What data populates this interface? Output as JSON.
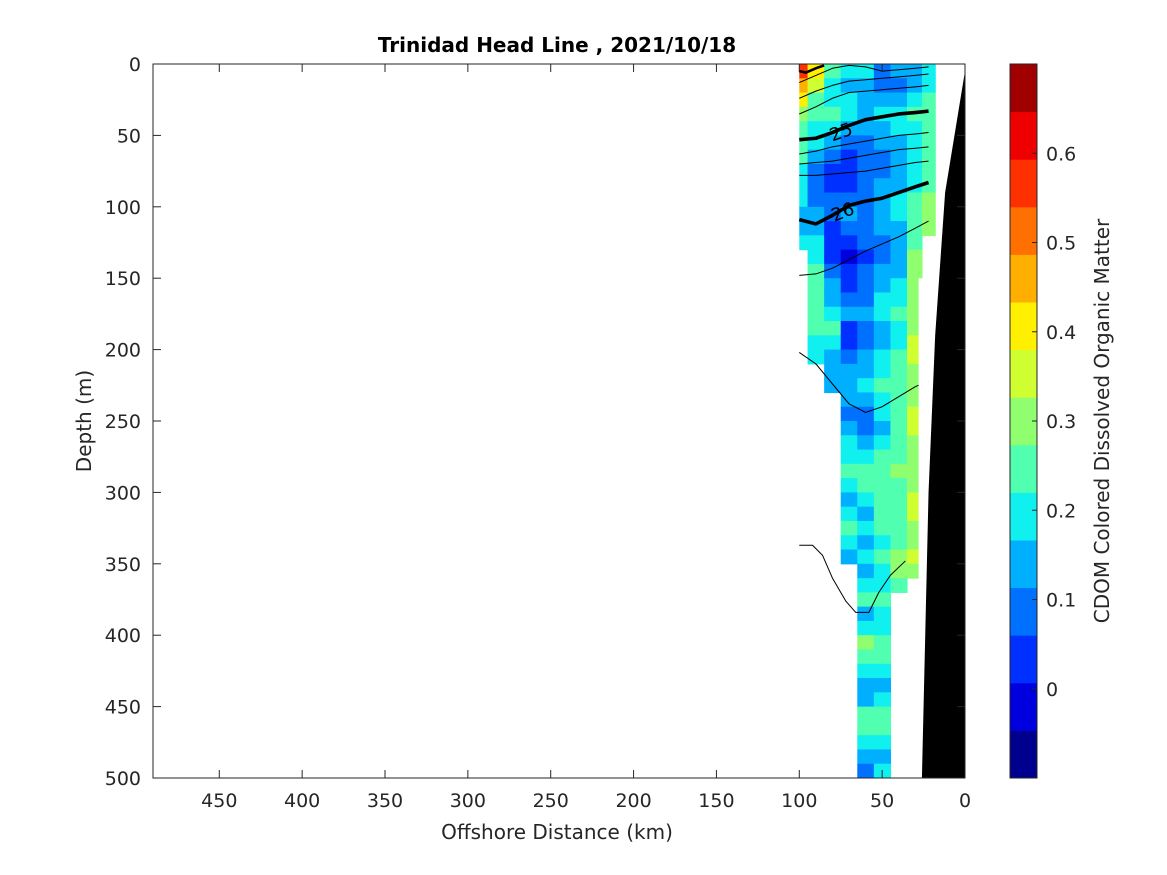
{
  "chart_data": {
    "type": "heatmap",
    "title": "Trinidad Head Line , 2021/10/18",
    "xlabel": "Offshore Distance (km)",
    "ylabel": "Depth (m)",
    "colorbar_label": "CDOM Colored Dissolved Organic Matter",
    "xlim": [
      490,
      0
    ],
    "x_reversed": true,
    "ylim": [
      0,
      500
    ],
    "y_reversed": true,
    "x_ticks": [
      450,
      400,
      350,
      300,
      250,
      200,
      150,
      100,
      50,
      0
    ],
    "y_ticks": [
      0,
      50,
      100,
      150,
      200,
      250,
      300,
      350,
      400,
      450,
      500
    ],
    "colorbar_range": [
      -0.1,
      0.7
    ],
    "colorbar_ticks": [
      0,
      0.1,
      0.2,
      0.3,
      0.4,
      0.5,
      0.6
    ],
    "colorbar_colors": [
      "#00008f",
      "#0000df",
      "#0030ff",
      "#0070ff",
      "#00b0ff",
      "#10f0ef",
      "#50ffaf",
      "#90ff6f",
      "#cfff30",
      "#ffef00",
      "#ffaf00",
      "#ff7000",
      "#ff3000",
      "#ef0000",
      "#a00000"
    ],
    "contour_labels": [
      {
        "text": "25",
        "x": 75,
        "y": 47,
        "angle": -20
      },
      {
        "text": "26",
        "x": 74,
        "y": 103,
        "angle": -22
      }
    ],
    "grid": false,
    "profiles": [
      {
        "x": 100,
        "values": [
          0.55,
          0.48,
          0.38,
          0.31,
          0.26,
          0.24,
          0.22,
          0.21,
          0.2,
          0.18,
          0.16,
          0.16,
          0.2
        ]
      },
      {
        "x": 90,
        "values": [
          0.42,
          0.33,
          0.27,
          0.23,
          0.2,
          0.17,
          0.13,
          0.1,
          0.09,
          0.1,
          0.13,
          0.15,
          0.18,
          0.21,
          0.22,
          0.24,
          0.26,
          0.27,
          0.22,
          0.19,
          0.2
        ]
      },
      {
        "x": 80,
        "values": [
          0.22,
          0.18,
          0.2,
          0.22,
          0.17,
          0.12,
          0.08,
          0.05,
          0.04,
          0.06,
          0.08,
          0.05,
          0.02,
          0.04,
          0.08,
          0.12,
          0.15,
          0.19,
          0.22,
          0.2,
          0.16,
          0.12,
          0.16
        ]
      },
      {
        "x": 70,
        "values": [
          0.2,
          0.15,
          0.18,
          0.2,
          0.14,
          0.09,
          0.05,
          0.03,
          0.05,
          0.09,
          0.12,
          0.08,
          0.03,
          0.0,
          0.02,
          0.04,
          0.08,
          0.12,
          0.03,
          0.05,
          0.1,
          0.14,
          0.16,
          0.12,
          0.09,
          0.12,
          0.18,
          0.21,
          0.24,
          0.2,
          0.16,
          0.19,
          0.22,
          0.18,
          0.14
        ]
      },
      {
        "x": 60,
        "values": [
          0.18,
          0.14,
          0.12,
          0.16,
          0.13,
          0.1,
          0.07,
          0.06,
          0.08,
          0.1,
          0.11,
          0.09,
          0.06,
          0.05,
          0.06,
          0.07,
          0.1,
          0.13,
          0.08,
          0.09,
          0.12,
          0.16,
          0.18,
          0.13,
          0.1,
          0.07,
          0.12,
          0.18,
          0.22,
          0.24,
          0.2,
          0.16,
          0.19,
          0.15,
          0.2,
          0.12,
          0.18,
          0.26,
          0.14,
          0.2,
          0.32,
          0.22,
          0.18,
          0.12,
          0.16,
          0.22,
          0.24,
          0.2,
          0.14,
          0.08,
          0.22,
          0.16,
          0.1,
          0.06,
          0.16
        ]
      },
      {
        "x": 50,
        "values": [
          0.1,
          0.08,
          0.14,
          0.19,
          0.16,
          0.12,
          0.1,
          0.09,
          0.12,
          0.15,
          0.14,
          0.13,
          0.11,
          0.1,
          0.12,
          0.14,
          0.18,
          0.2,
          0.14,
          0.15,
          0.18,
          0.2,
          0.22,
          0.2,
          0.17,
          0.15,
          0.19,
          0.23,
          0.25,
          0.27,
          0.26,
          0.22,
          0.24,
          0.2,
          0.22,
          0.18,
          0.2,
          0.22,
          0.2,
          0.18,
          0.22,
          0.24,
          0.2,
          0.16,
          0.2,
          0.26,
          0.24,
          0.18,
          0.12,
          0.2,
          0.25,
          0.18,
          0.12,
          0.08,
          0.2
        ]
      },
      {
        "x": 40,
        "values": [
          0.14,
          0.1,
          0.16,
          0.2,
          0.18,
          0.15,
          0.13,
          0.13,
          0.15,
          0.17,
          0.17,
          0.16,
          0.15,
          0.14,
          0.16,
          0.18,
          0.2,
          0.22,
          0.2,
          0.2,
          0.22,
          0.24,
          0.26,
          0.25,
          0.23,
          0.22,
          0.24,
          0.26,
          0.28,
          0.26,
          0.24,
          0.22,
          0.24,
          0.26,
          0.3,
          0.28,
          0.24
        ]
      },
      {
        "x": 30,
        "values": [
          0.12,
          0.14,
          0.2,
          0.23,
          0.2,
          0.18,
          0.17,
          0.18,
          0.2,
          0.22,
          0.22,
          0.24,
          0.26,
          0.28,
          0.3,
          0.32,
          0.3,
          0.28,
          0.3,
          0.33,
          0.35,
          0.31,
          0.29,
          0.32,
          0.34,
          0.33,
          0.3,
          0.28,
          0.3,
          0.32,
          0.35,
          0.33,
          0.3,
          0.32,
          0.33,
          0.3
        ]
      },
      {
        "x": 22,
        "values": [
          0.18,
          0.2,
          0.24,
          0.26,
          0.24,
          0.22,
          0.22,
          0.24,
          0.26,
          0.28,
          0.3,
          0.3
        ]
      }
    ]
  }
}
